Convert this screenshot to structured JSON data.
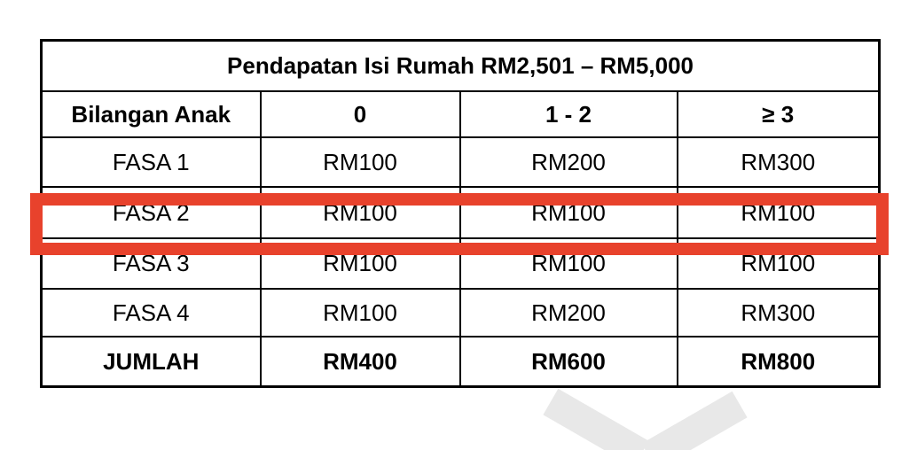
{
  "table": {
    "title": "Pendapatan Isi Rumah RM2,501 – RM5,000",
    "columns": [
      "Bilangan Anak",
      "0",
      "1 - 2",
      "≥ 3"
    ],
    "rows": [
      {
        "label": "FASA 1",
        "values": [
          "RM100",
          "RM200",
          "RM300"
        ],
        "highlighted": false
      },
      {
        "label": "FASA 2",
        "values": [
          "RM100",
          "RM100",
          "RM100"
        ],
        "highlighted": true
      },
      {
        "label": "FASA 3",
        "values": [
          "RM100",
          "RM100",
          "RM100"
        ],
        "highlighted": false
      },
      {
        "label": "FASA 4",
        "values": [
          "RM100",
          "RM200",
          "RM300"
        ],
        "highlighted": false
      }
    ],
    "total_row": {
      "label": "JUMLAH",
      "values": [
        "RM400",
        "RM600",
        "RM800"
      ]
    }
  },
  "colors": {
    "header_bg": "#c0c0c0",
    "cell_bg": "#ffffff",
    "table_border": "#000000",
    "highlight_border": "#e8422c",
    "text": "#000000",
    "watermark": "#e8e8e8"
  },
  "chart_data": {
    "type": "table",
    "title": "Pendapatan Isi Rumah RM2,501 – RM5,000",
    "columns": [
      "Bilangan Anak",
      "0",
      "1 - 2",
      "≥ 3"
    ],
    "rows": [
      [
        "FASA 1",
        "RM100",
        "RM200",
        "RM300"
      ],
      [
        "FASA 2",
        "RM100",
        "RM100",
        "RM100"
      ],
      [
        "FASA 3",
        "RM100",
        "RM100",
        "RM100"
      ],
      [
        "FASA 4",
        "RM100",
        "RM200",
        "RM300"
      ],
      [
        "JUMLAH",
        "RM400",
        "RM600",
        "RM800"
      ]
    ],
    "highlighted_row": "FASA 2"
  }
}
